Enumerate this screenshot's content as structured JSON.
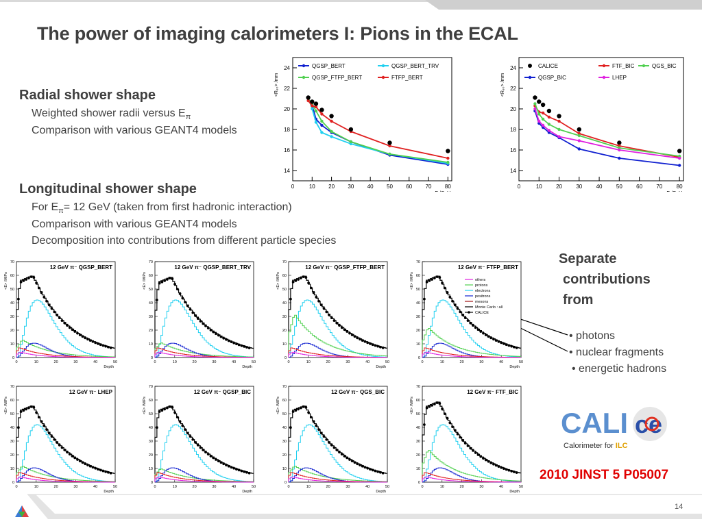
{
  "slide": {
    "title": "The power of imaging calorimeters I: Pions in the ECAL",
    "radial_heading": "Radial shower shape",
    "radial_bullets": [
      "Weighted shower radii versus E",
      "Comparison with various GEANT4 models"
    ],
    "longitudinal_heading": "Longitudinal shower shape",
    "longitudinal_bullets": [
      "For E",
      "= 12 GeV (taken from first hadronic interaction)",
      "Comparison with various GEANT4 models",
      "Decomposition into contributions from different particle species"
    ],
    "pi_symbol": "π",
    "separate_lines": [
      "Separate",
      "contributions",
      "from"
    ],
    "contributions": [
      "• photons",
      "• nuclear fragments",
      "• energetic hadrons"
    ],
    "reference": "2010 JINST 5 P05007",
    "page_number": "14",
    "logo_text_1": "CALI",
    "logo_text_2": "ce",
    "logo_sub": "Calorimeter for ",
    "logo_sub_ilc": "ILC"
  },
  "colors": {
    "blue": "#1020d0",
    "cyan": "#20d0f0",
    "green": "#50d050",
    "red": "#e02020",
    "magenta": "#e020e0",
    "black": "#000000",
    "darkred": "#a01010",
    "title_gray": "#3f3f3f",
    "ref_red": "#e00000"
  },
  "chart_data": [
    {
      "type": "line",
      "ylabel": "<R",
      "ylabel_unit": "/mm",
      "xlabel": "E",
      "xlabel_sub": "beam",
      "xlabel_unit": "/GeV",
      "xlim": [
        0,
        82
      ],
      "ylim": [
        13,
        25
      ],
      "xticks": [
        0,
        10,
        20,
        30,
        40,
        50,
        60,
        70,
        80
      ],
      "yticks": [
        14,
        16,
        18,
        20,
        22,
        24
      ],
      "series": [
        {
          "name": "QGSP_BERT",
          "color": "#1020d0",
          "x": [
            8,
            10,
            12,
            15,
            20,
            30,
            50,
            80
          ],
          "y": [
            21.0,
            20.4,
            19.0,
            18.4,
            17.7,
            16.8,
            15.5,
            14.6
          ]
        },
        {
          "name": "QGSP_BERT_TRV",
          "color": "#20d0f0",
          "x": [
            8,
            10,
            12,
            15,
            20,
            30,
            50,
            80
          ],
          "y": [
            21.1,
            20.0,
            18.7,
            17.7,
            17.3,
            16.6,
            15.6,
            14.7
          ]
        },
        {
          "name": "QGSP_FTFP_BERT",
          "color": "#50d050",
          "x": [
            8,
            10,
            12,
            15,
            20,
            30,
            50,
            80
          ],
          "y": [
            21.0,
            20.5,
            19.8,
            18.8,
            17.8,
            16.8,
            15.6,
            14.8
          ]
        },
        {
          "name": "FTFP_BERT",
          "color": "#e02020",
          "x": [
            8,
            10,
            12,
            15,
            20,
            30,
            50,
            80
          ],
          "y": [
            20.8,
            20.3,
            20.2,
            19.5,
            18.8,
            17.8,
            16.4,
            15.2
          ]
        },
        {
          "name": "",
          "color": "#000000",
          "marker": "dot",
          "x": [
            8,
            10,
            12,
            15,
            20,
            30,
            50,
            80
          ],
          "y": [
            21.1,
            20.7,
            20.5,
            19.9,
            19.3,
            18.0,
            16.7,
            15.9
          ]
        }
      ]
    },
    {
      "type": "line",
      "ylabel": "<R",
      "ylabel_unit": "/mm",
      "xlabel": "E",
      "xlabel_sub": "beam",
      "xlabel_unit": "/GeV",
      "xlim": [
        0,
        82
      ],
      "ylim": [
        13,
        25
      ],
      "xticks": [
        0,
        10,
        20,
        30,
        40,
        50,
        60,
        70,
        80
      ],
      "yticks": [
        14,
        16,
        18,
        20,
        22,
        24
      ],
      "series": [
        {
          "name": "CALICE",
          "color": "#000000",
          "marker": "dot",
          "x": [
            8,
            10,
            12,
            15,
            20,
            30,
            50,
            80
          ],
          "y": [
            21.1,
            20.7,
            20.4,
            19.8,
            19.3,
            18.0,
            16.7,
            15.9
          ]
        },
        {
          "name": "FTF_BIC",
          "color": "#e02020",
          "x": [
            8,
            10,
            12,
            15,
            20,
            30,
            50,
            80
          ],
          "y": [
            20.3,
            19.7,
            19.6,
            19.2,
            18.8,
            17.6,
            16.4,
            15.3
          ]
        },
        {
          "name": "QGS_BIC",
          "color": "#50d050",
          "x": [
            8,
            10,
            12,
            15,
            20,
            30,
            50,
            80
          ],
          "y": [
            20.5,
            19.5,
            19.0,
            18.5,
            18.0,
            17.4,
            16.2,
            15.4
          ]
        },
        {
          "name": "QGSP_BIC",
          "color": "#1020d0",
          "x": [
            8,
            10,
            12,
            15,
            20,
            30,
            50,
            80
          ],
          "y": [
            19.8,
            18.6,
            18.2,
            17.7,
            17.2,
            16.1,
            15.2,
            14.5
          ]
        },
        {
          "name": "LHEP",
          "color": "#e020e0",
          "x": [
            8,
            10,
            12,
            15,
            20,
            30,
            50,
            80
          ],
          "y": [
            20.0,
            18.8,
            18.4,
            17.9,
            17.3,
            16.9,
            16.0,
            15.2
          ]
        }
      ]
    },
    {
      "type": "line",
      "title": "12 GeV π⁻ QGSP_BERT",
      "ylabel": "<E> /MIPs",
      "xlabel": "Depth",
      "xlim": [
        0,
        50
      ],
      "ylim": [
        0,
        70
      ],
      "xticks": [
        0,
        10,
        20,
        30,
        40,
        50
      ],
      "yticks": [
        0,
        10,
        20,
        30,
        40,
        50,
        60,
        70
      ],
      "series": [
        {
          "name": "photons",
          "values": [
            3,
            4,
            5,
            6,
            7,
            8,
            8,
            8,
            7,
            7,
            6,
            6,
            5,
            5,
            5,
            4,
            4,
            4,
            3,
            3,
            3,
            3,
            2,
            2,
            2,
            2,
            2,
            2,
            2,
            2
          ]
        }
      ]
    },
    {
      "type": "line",
      "title": "12 GeV π⁻ QGSP_BERT_TRV"
    },
    {
      "type": "line",
      "title": "12 GeV π⁻ QGSP_FTFP_BERT"
    },
    {
      "type": "line",
      "title": "12 GeV π⁻ FTFP_BERT",
      "legend": [
        "others",
        "protons",
        "electrons",
        "positrons",
        "mesons",
        "Monte Carlo : all",
        "CALICE"
      ]
    },
    {
      "type": "line",
      "title": "12 GeV π⁻ LHEP"
    },
    {
      "type": "line",
      "title": "12 GeV π⁻ QGSP_BIC"
    },
    {
      "type": "line",
      "title": "12 GeV π⁻ QGS_BIC"
    },
    {
      "type": "line",
      "title": "12 GeV π⁻ FTF_BIC"
    }
  ]
}
